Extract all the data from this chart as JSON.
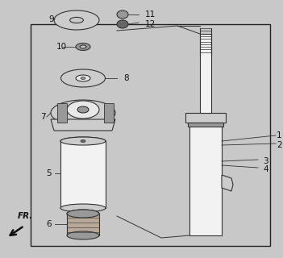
{
  "bg_color": "#c8c8c8",
  "inner_bg": "#d4d4d4",
  "border_color": "#222222",
  "line_color": "#333333",
  "white": "#f2f2f2",
  "light_gray": "#cccccc",
  "mid_gray": "#999999",
  "dark_gray": "#666666",
  "part_color": "#e8e8e8",
  "arrow_label": "FR."
}
